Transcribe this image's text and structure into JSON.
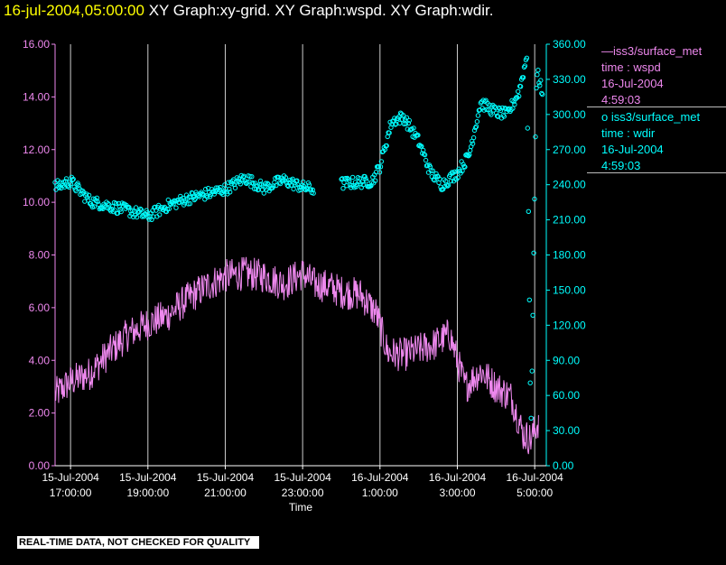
{
  "header": {
    "timestamp": "16-jul-2004,05:00:00",
    "graphs": "XY Graph:xy-grid.  XY Graph:wspd.  XY Graph:wdir."
  },
  "legend": [
    {
      "prefix": "—",
      "name": "iss3/surface_met",
      "line2": "time : wspd",
      "line3": "16-Jul-2004",
      "line4": "4:59:03"
    },
    {
      "prefix": "o",
      "name": "iss3/surface_met",
      "line2": "time : wdir",
      "line3": "16-Jul-2004",
      "line4": "4:59:03"
    }
  ],
  "notice": "REAL-TIME DATA, NOT CHECKED FOR QUALITY",
  "chart_data": {
    "type": "line",
    "xlabel": "Time",
    "x_range_hours": [
      16.6,
      29.3
    ],
    "x_ticks": [
      {
        "t": 17,
        "line1": "15-Jul-2004",
        "line2": "17:00:00"
      },
      {
        "t": 19,
        "line1": "15-Jul-2004",
        "line2": "19:00:00"
      },
      {
        "t": 21,
        "line1": "15-Jul-2004",
        "line2": "21:00:00"
      },
      {
        "t": 23,
        "line1": "15-Jul-2004",
        "line2": "23:00:00"
      },
      {
        "t": 25,
        "line1": "16-Jul-2004",
        "line2": "1:00:00"
      },
      {
        "t": 27,
        "line1": "16-Jul-2004",
        "line2": "3:00:00"
      },
      {
        "t": 29,
        "line1": "16-Jul-2004",
        "line2": "5:00:00"
      }
    ],
    "y_left": {
      "range": [
        0,
        16
      ],
      "ticks": [
        "0.00",
        "2.00",
        "4.00",
        "6.00",
        "8.00",
        "10.00",
        "12.00",
        "14.00",
        "16.00"
      ]
    },
    "y_right": {
      "range": [
        0,
        360
      ],
      "ticks": [
        "0.00",
        "30.00",
        "60.00",
        "90.00",
        "120.00",
        "150.00",
        "180.00",
        "210.00",
        "240.00",
        "270.00",
        "300.00",
        "330.00",
        "360.00"
      ]
    },
    "grid": "vertical",
    "colors": {
      "wspd": "#ee88ee",
      "wdir": "#00ffff",
      "grid": "#cccccc",
      "axis_left": "#ee88ee",
      "axis_right": "#00ffff"
    },
    "series": [
      {
        "name": "wspd",
        "axis": "left",
        "style": "line",
        "x_hours": [
          16.6,
          17.0,
          17.5,
          18.0,
          18.5,
          19.0,
          19.5,
          20.0,
          20.5,
          21.0,
          21.5,
          22.0,
          22.5,
          23.0,
          23.3,
          23.7,
          24.0,
          24.5,
          24.9,
          25.2,
          25.6,
          26.0,
          26.4,
          26.8,
          27.2,
          27.6,
          28.0,
          28.4,
          28.7,
          28.9,
          29.1
        ],
        "values": [
          2.7,
          3.2,
          3.5,
          4.3,
          5.0,
          5.4,
          5.7,
          6.3,
          6.8,
          7.2,
          7.3,
          7.2,
          6.9,
          7.3,
          6.9,
          6.8,
          6.6,
          6.5,
          5.8,
          4.3,
          4.2,
          4.4,
          4.6,
          5.0,
          3.0,
          3.6,
          3.0,
          2.6,
          1.2,
          1.0,
          1.7
        ],
        "noise": 0.65
      },
      {
        "name": "wdir",
        "axis": "right",
        "style": "points",
        "x_hours": [
          16.6,
          17.0,
          17.5,
          18.0,
          18.5,
          19.0,
          19.5,
          20.0,
          20.5,
          21.0,
          21.5,
          22.0,
          22.5,
          23.0,
          23.3,
          23.7,
          24.0,
          24.4,
          24.8,
          25.0,
          25.3,
          25.6,
          25.8,
          26.0,
          26.3,
          26.6,
          27.0,
          27.3,
          27.6,
          28.0,
          28.3,
          28.6,
          28.8,
          28.9,
          29.05,
          29.2
        ],
        "values": [
          238,
          243,
          226,
          222,
          218,
          213,
          222,
          228,
          232,
          236,
          246,
          237,
          244,
          238,
          236,
          null,
          241,
          242,
          243,
          256,
          294,
          298,
          288,
          277,
          251,
          240,
          250,
          265,
          310,
          302,
          300,
          320,
          350,
          20,
          340,
          318
        ],
        "noise": 5
      }
    ]
  }
}
